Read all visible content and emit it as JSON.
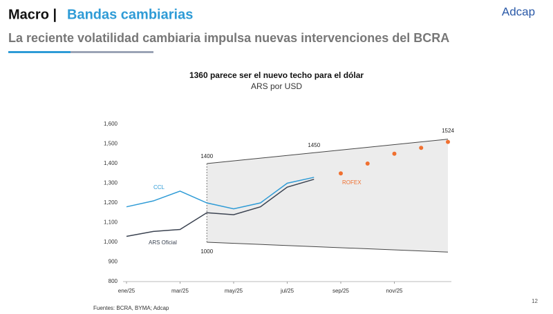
{
  "header": {
    "section": "Macro |",
    "title": "Bandas cambiarias",
    "subtitle": "La reciente volatilidad cambiaria impulsa nuevas intervenciones del BCRA",
    "logo": "Adcap"
  },
  "chart_data": {
    "type": "line",
    "title": "1360 parece ser el nuevo techo para el dólar",
    "subtitle": "ARS por USD",
    "xlim": [
      "2025-01",
      "2026-01"
    ],
    "xticks": [
      {
        "value": "2025-01",
        "label": "ene/25"
      },
      {
        "value": "2025-03",
        "label": "mar/25"
      },
      {
        "value": "2025-05",
        "label": "may/25"
      },
      {
        "value": "2025-07",
        "label": "jul/25"
      },
      {
        "value": "2025-09",
        "label": "sep/25"
      },
      {
        "value": "2025-11",
        "label": "nov/25"
      }
    ],
    "ylim": [
      800,
      1600
    ],
    "yticks": [
      800,
      900,
      {
        "value": 1000,
        "label": "1,000"
      },
      {
        "value": 1100,
        "label": "1,100"
      },
      {
        "value": 1200,
        "label": "1,200"
      },
      {
        "value": 1300,
        "label": "1,300"
      },
      {
        "value": 1400,
        "label": "1,400"
      },
      {
        "value": 1500,
        "label": "1,500"
      },
      {
        "value": 1600,
        "label": "1,600"
      }
    ],
    "series": [
      {
        "name": "CCL",
        "color": "#2e9bd6",
        "x": [
          "2025-01",
          "2025-02",
          "2025-03",
          "2025-04",
          "2025-05",
          "2025-06",
          "2025-07",
          "2025-08"
        ],
        "values": [
          1180,
          1210,
          1260,
          1200,
          1170,
          1200,
          1300,
          1330
        ]
      },
      {
        "name": "ARS Oficial",
        "color": "#3a4250",
        "x": [
          "2025-01",
          "2025-02",
          "2025-03",
          "2025-04",
          "2025-05",
          "2025-06",
          "2025-07",
          "2025-08"
        ],
        "values": [
          1030,
          1055,
          1065,
          1150,
          1140,
          1180,
          1280,
          1320
        ]
      },
      {
        "name": "ROFEX",
        "color": "#f07030",
        "type": "scatter",
        "x": [
          "2025-09",
          "2025-10",
          "2025-11",
          "2025-12",
          "2026-01"
        ],
        "values": [
          1350,
          1400,
          1450,
          1480,
          1510
        ]
      }
    ],
    "band": {
      "x": [
        "2025-04",
        "2026-01"
      ],
      "upper": [
        1400,
        1524
      ],
      "lower": [
        1000,
        950
      ],
      "color": "#ececec"
    },
    "annotations": [
      {
        "text": "1400",
        "x": "2025-04",
        "y": 1400
      },
      {
        "text": "1450",
        "x": "2025-08",
        "y": 1450
      },
      {
        "text": "1000",
        "x": "2025-04",
        "y": 1000
      },
      {
        "text": "1524",
        "x": "2026-01",
        "y": 1524
      }
    ]
  },
  "footer": {
    "source": "Fuentes: BCRA, BYMA; Adcap",
    "page": "12"
  }
}
